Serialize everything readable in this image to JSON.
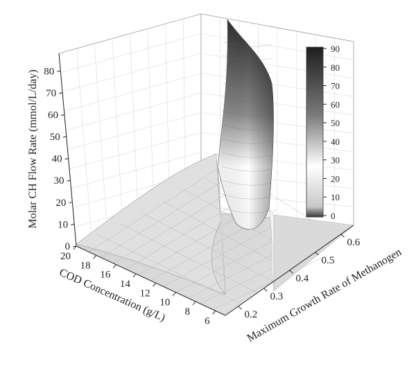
{
  "chart_data": {
    "type": "surface3d",
    "title": "",
    "zlabel": "Molar CH Flow Rate (mmol/L/day)",
    "xlabel": "COD Concentration (g/L)",
    "ylabel": "Maximum Growth Rate of Methanogen",
    "x_ticks": [
      "20",
      "18",
      "16",
      "14",
      "12",
      "10",
      "8",
      "6"
    ],
    "y_ticks": [
      "0.2",
      "0.3",
      "0.4",
      "0.5",
      "0.6"
    ],
    "z_ticks": [
      "0",
      "10",
      "20",
      "30",
      "40",
      "50",
      "60",
      "70",
      "80"
    ],
    "xlim": [
      5,
      20
    ],
    "ylim": [
      0.15,
      0.65
    ],
    "zlim": [
      0,
      88
    ],
    "colorbar": {
      "min": 0,
      "max": 90,
      "ticks": [
        "90",
        "80",
        "70",
        "60",
        "50",
        "40",
        "30",
        "20",
        "10",
        "0"
      ],
      "colormap": "grayscale (white mid, dark top)"
    },
    "surface_samples": [
      {
        "cod": 20,
        "mu": 0.2,
        "flow": 2
      },
      {
        "cod": 20,
        "mu": 0.35,
        "flow": 4
      },
      {
        "cod": 20,
        "mu": 0.6,
        "flow": 1
      },
      {
        "cod": 12,
        "mu": 0.25,
        "flow": 10
      },
      {
        "cod": 10,
        "mu": 0.3,
        "flow": 18
      },
      {
        "cod": 8,
        "mu": 0.32,
        "flow": 28
      },
      {
        "cod": 6,
        "mu": 0.3,
        "flow": 86
      },
      {
        "cod": 6,
        "mu": 0.35,
        "flow": 40
      },
      {
        "cod": 6,
        "mu": 0.5,
        "flow": 0
      }
    ]
  }
}
